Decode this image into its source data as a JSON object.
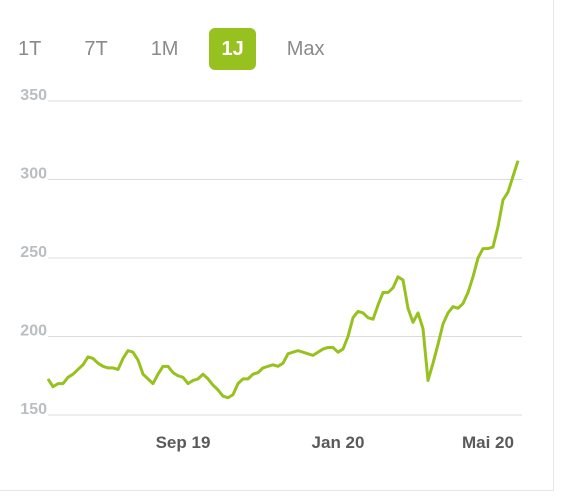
{
  "range_selector": {
    "options": [
      "1T",
      "7T",
      "1M",
      "1J",
      "Max"
    ],
    "selected": 3,
    "selected_color": "#97c11f"
  },
  "chart_data": {
    "type": "line",
    "categories": [
      null,
      null,
      null,
      null,
      null,
      null,
      null,
      null,
      null,
      null,
      null,
      null,
      null,
      null,
      null,
      null,
      null,
      null,
      null,
      null,
      null,
      null,
      null,
      null,
      null,
      null,
      null,
      "Sep 19",
      null,
      null,
      null,
      null,
      null,
      null,
      null,
      null,
      null,
      null,
      null,
      null,
      null,
      null,
      null,
      null,
      null,
      null,
      null,
      null,
      null,
      null,
      null,
      null,
      null,
      null,
      null,
      null,
      null,
      null,
      "Jan 20",
      null,
      null,
      null,
      null,
      null,
      null,
      null,
      null,
      null,
      null,
      null,
      null,
      null,
      null,
      null,
      null,
      null,
      null,
      null,
      null,
      null,
      null,
      null,
      null,
      null,
      null,
      null,
      null,
      null,
      "Mai 20",
      null,
      null,
      null,
      null,
      null,
      null
    ],
    "series": [
      {
        "color": "#97c11f",
        "values": [
          173,
          168,
          170,
          170,
          174,
          176,
          179,
          182,
          187,
          186,
          183,
          181,
          180,
          180,
          179,
          186,
          191,
          190,
          185,
          176,
          173,
          170,
          176,
          181,
          181,
          177,
          175,
          174,
          170,
          172,
          173,
          176,
          173,
          169,
          166,
          162,
          161,
          163,
          170,
          173,
          173,
          176,
          177,
          180,
          181,
          182,
          181,
          183,
          189,
          190,
          191,
          190,
          189,
          188,
          190,
          192,
          193,
          193,
          190,
          192,
          200,
          212,
          216,
          215,
          212,
          211,
          220,
          228,
          228,
          231,
          238,
          236,
          218,
          209,
          215,
          205,
          172,
          183,
          195,
          208,
          215,
          219,
          218,
          221,
          228,
          238,
          250,
          256,
          256,
          257,
          270,
          287,
          292,
          302,
          312
        ]
      }
    ],
    "ylim": [
      150,
      350
    ],
    "yticks": [
      150,
      200,
      250,
      300,
      350
    ],
    "grid": true
  }
}
